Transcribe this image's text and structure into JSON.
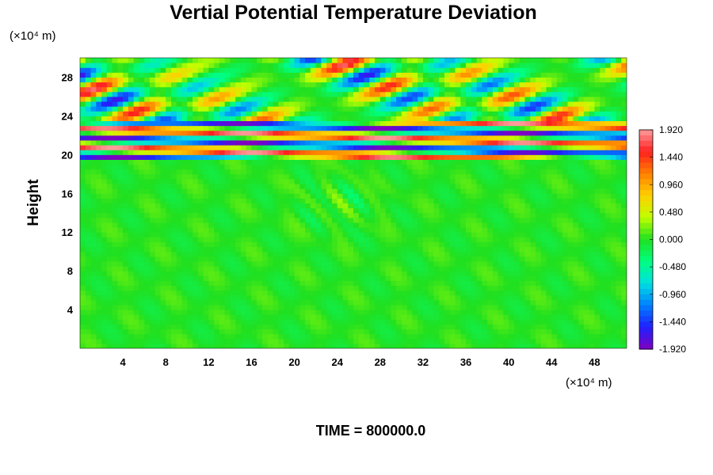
{
  "chart_data": {
    "type": "heatmap",
    "title": "Vertial Potential Temperature Deviation",
    "ylabel": "Height",
    "x_unit": "(×10⁴ m)",
    "y_unit": "(×10⁴ m)",
    "xlim": [
      0,
      51
    ],
    "ylim": [
      0,
      30
    ],
    "x_ticks": [
      4,
      8,
      12,
      16,
      20,
      24,
      28,
      32,
      36,
      40,
      44,
      48
    ],
    "y_ticks": [
      4,
      8,
      12,
      16,
      20,
      24,
      28
    ],
    "colorbar": {
      "min": -1.92,
      "max": 1.92,
      "tick_values": [
        1.92,
        1.44,
        0.96,
        0.48,
        0.0,
        -0.48,
        -0.96,
        -1.44,
        -1.92
      ],
      "tick_labels": [
        "1.920",
        "1.440",
        "0.960",
        "0.480",
        "0.000",
        "-0.480",
        "-0.960",
        "-1.440",
        "-1.920"
      ],
      "colors_top_to_bottom": [
        "#ff9c9c",
        "#ff2020",
        "#ff8000",
        "#ffd000",
        "#c0ff00",
        "#20e020",
        "#00ff80",
        "#00e0e0",
        "#0080ff",
        "#2020ff",
        "#8000c0"
      ]
    },
    "field_description": {
      "lower_layer": {
        "height_range": [
          0,
          19.5
        ],
        "approx_value": 0.0
      },
      "strong_band": {
        "height_range": [
          19.5,
          23.5
        ],
        "approx_amplitude": 1.92
      },
      "upper_waves": {
        "height_range": [
          23.5,
          30
        ],
        "approx_amplitude": 1.92
      }
    },
    "grid": false,
    "legend": "colorbar-right"
  },
  "footer": {
    "time_label": "TIME = 800000.0"
  }
}
